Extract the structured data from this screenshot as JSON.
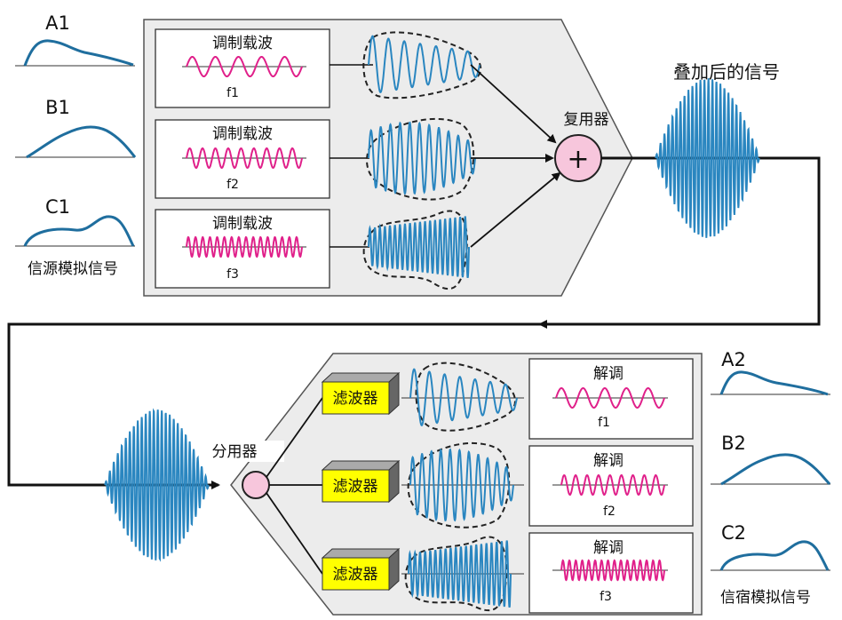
{
  "multiplex": {
    "sources": [
      {
        "name": "A1",
        "carrier_label": "调制载波",
        "freq": "f1"
      },
      {
        "name": "B1",
        "carrier_label": "调制载波",
        "freq": "f2"
      },
      {
        "name": "C1",
        "carrier_label": "调制载波",
        "freq": "f3"
      }
    ],
    "source_caption": "信源模拟信号",
    "multiplexer_label": "复用器",
    "combined_label": "叠加后的信号",
    "plus_symbol": "+"
  },
  "demultiplex": {
    "splitter_label": "分用器",
    "filters": [
      {
        "label": "滤波器",
        "demod_label": "解调",
        "freq": "f1",
        "name": "A2"
      },
      {
        "label": "滤波器",
        "demod_label": "解调",
        "freq": "f2",
        "name": "B2"
      },
      {
        "label": "滤波器",
        "demod_label": "解调",
        "freq": "f3",
        "name": "C2"
      }
    ],
    "sink_caption": "信宿模拟信号"
  },
  "colors": {
    "carrier": "#e0208a",
    "wave": "#2a86c0",
    "envelope": "#1f6e9e",
    "filter_box": "#ffff00",
    "panel": "#ececec",
    "plus_circle": "#f7c6dc"
  }
}
